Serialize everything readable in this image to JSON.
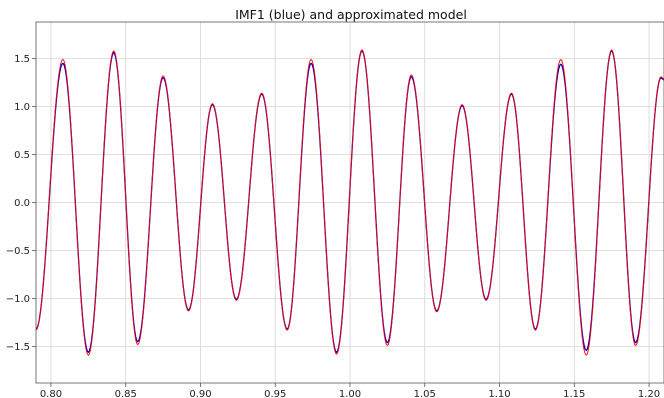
{
  "chart_data": {
    "type": "line",
    "title": "IMF1 (blue) and approximated model",
    "xlabel": "",
    "ylabel": "",
    "xlim": [
      0.79,
      1.21
    ],
    "ylim": [
      -1.88,
      1.88
    ],
    "xticks": [
      0.8,
      0.85,
      0.9,
      0.95,
      1.0,
      1.05,
      1.1,
      1.15,
      1.2
    ],
    "xtick_labels": [
      "0.80",
      "0.85",
      "0.90",
      "0.95",
      "1.00",
      "1.05",
      "1.10",
      "1.15",
      "1.20"
    ],
    "yticks": [
      -1.5,
      -1.0,
      -0.5,
      0.0,
      0.5,
      1.0,
      1.5
    ],
    "ytick_labels": [
      "−1.5",
      "−1.0",
      "−0.5",
      "0.0",
      "0.5",
      "1.0",
      "1.5"
    ],
    "grid": true,
    "series": [
      {
        "color": "#0000cc",
        "extrema": [
          [
            0.79,
            -1.32
          ],
          [
            0.808,
            1.45
          ],
          [
            0.825,
            -1.56
          ],
          [
            0.842,
            1.56
          ],
          [
            0.858,
            -1.45
          ],
          [
            0.875,
            1.3
          ],
          [
            0.892,
            -1.12
          ],
          [
            0.908,
            1.02
          ],
          [
            0.924,
            -1.01
          ],
          [
            0.941,
            1.13
          ],
          [
            0.958,
            -1.32
          ],
          [
            0.974,
            1.45
          ],
          [
            0.991,
            -1.56
          ],
          [
            1.008,
            1.58
          ],
          [
            1.025,
            -1.46
          ],
          [
            1.041,
            1.31
          ],
          [
            1.058,
            -1.13
          ],
          [
            1.075,
            1.01
          ],
          [
            1.091,
            -1.01
          ],
          [
            1.108,
            1.13
          ],
          [
            1.124,
            -1.32
          ],
          [
            1.141,
            1.44
          ],
          [
            1.158,
            -1.54
          ],
          [
            1.175,
            1.58
          ],
          [
            1.191,
            -1.46
          ],
          [
            1.208,
            1.3
          ]
        ]
      },
      {
        "color": "#ff0000",
        "extrema": [
          [
            0.79,
            -1.33
          ],
          [
            0.808,
            1.49
          ],
          [
            0.825,
            -1.59
          ],
          [
            0.842,
            1.58
          ],
          [
            0.858,
            -1.48
          ],
          [
            0.875,
            1.32
          ],
          [
            0.892,
            -1.13
          ],
          [
            0.908,
            1.03
          ],
          [
            0.924,
            -1.02
          ],
          [
            0.941,
            1.14
          ],
          [
            0.958,
            -1.33
          ],
          [
            0.974,
            1.49
          ],
          [
            0.991,
            -1.58
          ],
          [
            1.008,
            1.59
          ],
          [
            1.025,
            -1.49
          ],
          [
            1.041,
            1.33
          ],
          [
            1.058,
            -1.14
          ],
          [
            1.075,
            1.02
          ],
          [
            1.091,
            -1.02
          ],
          [
            1.108,
            1.14
          ],
          [
            1.124,
            -1.33
          ],
          [
            1.141,
            1.49
          ],
          [
            1.158,
            -1.59
          ],
          [
            1.175,
            1.59
          ],
          [
            1.191,
            -1.49
          ],
          [
            1.208,
            1.31
          ]
        ]
      }
    ]
  }
}
